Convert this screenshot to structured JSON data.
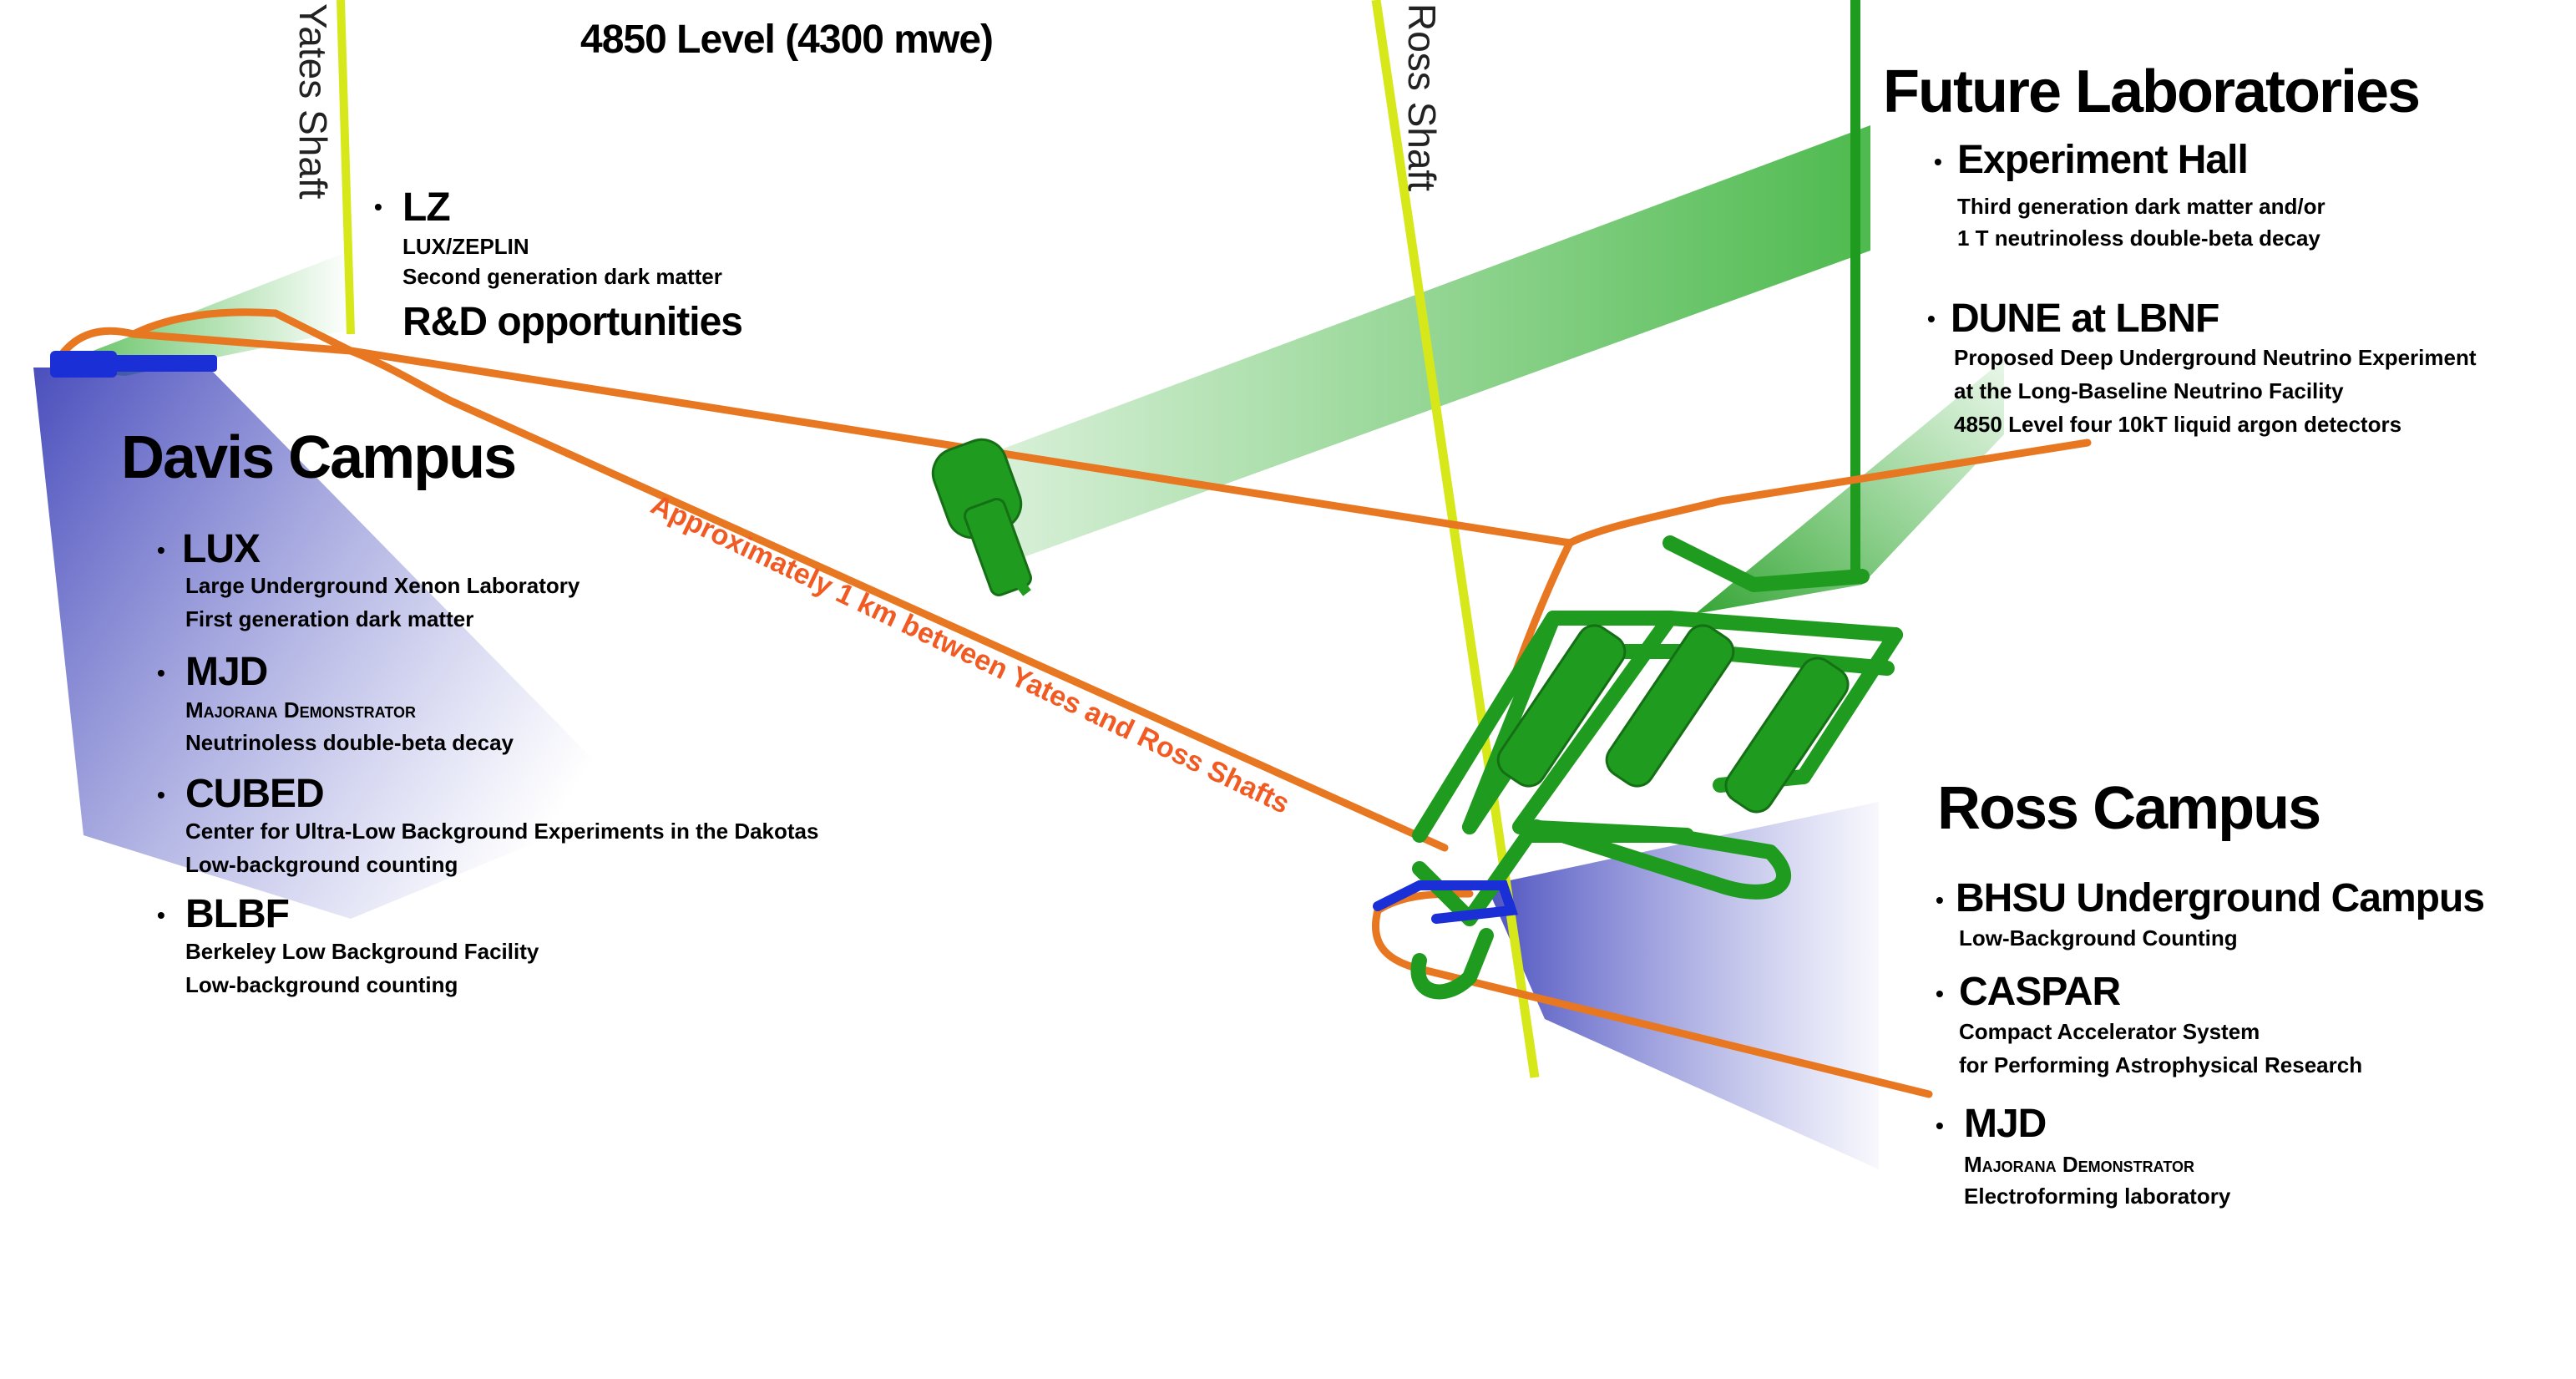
{
  "title": "4850 Level (4300 mwe)",
  "shafts": {
    "yates": "Yates Shaft",
    "ross": "Ross Shaft"
  },
  "distance_label": "Approximately 1 km between Yates and Ross Shafts",
  "bullet": "•",
  "colors": {
    "drift": "#e87722",
    "shaft": "#d7e81a",
    "future": "#1f9b1f",
    "existing": "#1a2fd6",
    "distance_text": "#f15a22"
  },
  "lz": {
    "name": "LZ",
    "subtitle": "LUX/ZEPLIN",
    "desc": "Second generation dark matter",
    "rd": "R&D opportunities"
  },
  "davis": {
    "title": "Davis Campus",
    "items": [
      {
        "name": "LUX",
        "lines": [
          "Large Underground Xenon Laboratory",
          "First generation dark matter"
        ]
      },
      {
        "name": "MJD",
        "lines": [
          "Majorana Demonstrator",
          "Neutrinoless double-beta decay"
        ]
      },
      {
        "name": "CUBED",
        "lines": [
          "Center for Ultra-Low Background Experiments in the Dakotas",
          "Low-background counting"
        ]
      },
      {
        "name": "BLBF",
        "lines": [
          "Berkeley Low Background Facility",
          "Low-background counting"
        ]
      }
    ]
  },
  "future": {
    "title": "Future Laboratories",
    "items": [
      {
        "name": "Experiment Hall",
        "lines": [
          "Third generation dark matter and/or",
          "1 T neutrinoless double-beta decay"
        ]
      },
      {
        "name": "DUNE at  LBNF",
        "lines": [
          "Proposed Deep Underground Neutrino Experiment",
          "at the Long-Baseline Neutrino Facility",
          "4850 Level four 10kT liquid argon detectors"
        ]
      }
    ]
  },
  "ross": {
    "title": "Ross Campus",
    "items": [
      {
        "name": "BHSU Underground Campus",
        "lines": [
          "Low-Background Counting"
        ]
      },
      {
        "name": "CASPAR",
        "lines": [
          "Compact Accelerator System",
          "for Performing Astrophysical Research"
        ]
      },
      {
        "name": "MJD",
        "lines": [
          "Majorana Demonstrator",
          "Electroforming laboratory"
        ]
      }
    ]
  }
}
